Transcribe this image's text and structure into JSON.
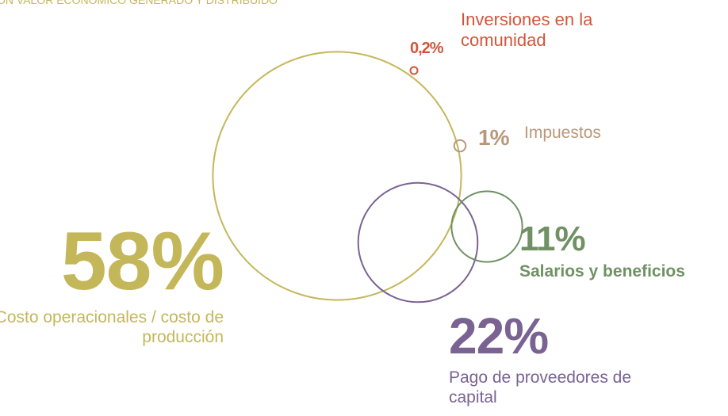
{
  "chart_data": {
    "type": "bubble",
    "title": "ÓN VALOR ECONÓMICO GENERADO Y DISTRIBUIDO",
    "categories": [
      "Costo operacionales / costo de producción",
      "Pago de proveedores de capital",
      "Salarios y beneficios",
      "Impuestos",
      "Inversiones en la comunidad"
    ],
    "values": [
      58,
      22,
      11,
      1,
      0.2
    ],
    "value_labels": [
      "58%",
      "22%",
      "11%",
      "1%",
      "0,2%"
    ],
    "colors": [
      "#c4b75a",
      "#7a6393",
      "#6f9163",
      "#b8987a",
      "#d2553a"
    ]
  }
}
